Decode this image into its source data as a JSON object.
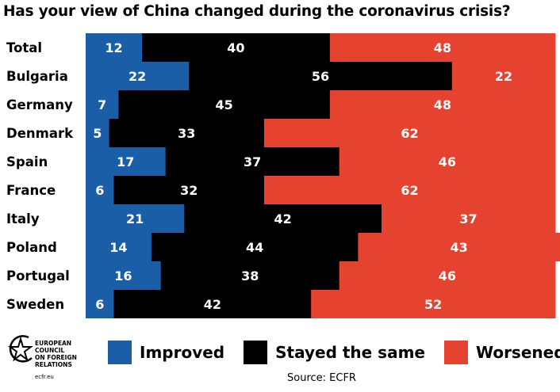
{
  "chart_data": {
    "type": "bar",
    "orientation": "horizontal",
    "stacked": true,
    "title": "Has your view of China changed during the coronavirus crisis?",
    "categories": [
      "Total",
      "Bulgaria",
      "Germany",
      "Denmark",
      "Spain",
      "France",
      "Italy",
      "Poland",
      "Portugal",
      "Sweden"
    ],
    "series": [
      {
        "name": "Improved",
        "color": "#1a5ea8",
        "values": [
          12,
          22,
          7,
          5,
          17,
          6,
          21,
          14,
          16,
          6
        ]
      },
      {
        "name": "Stayed the same",
        "color": "#000000",
        "values": [
          40,
          56,
          45,
          33,
          37,
          32,
          42,
          44,
          38,
          42
        ]
      },
      {
        "name": "Worsened",
        "color": "#e5422f",
        "values": [
          48,
          22,
          48,
          62,
          46,
          62,
          37,
          43,
          46,
          52
        ]
      }
    ],
    "legend_position": "bottom",
    "data_labels": true
  },
  "source": "Source: ECFR",
  "logo": {
    "lines": [
      "EUROPEAN",
      "COUNCIL",
      "ON FOREIGN",
      "RELATIONS"
    ],
    "url": "ecfr.eu",
    "icon": "star-circle-icon"
  }
}
